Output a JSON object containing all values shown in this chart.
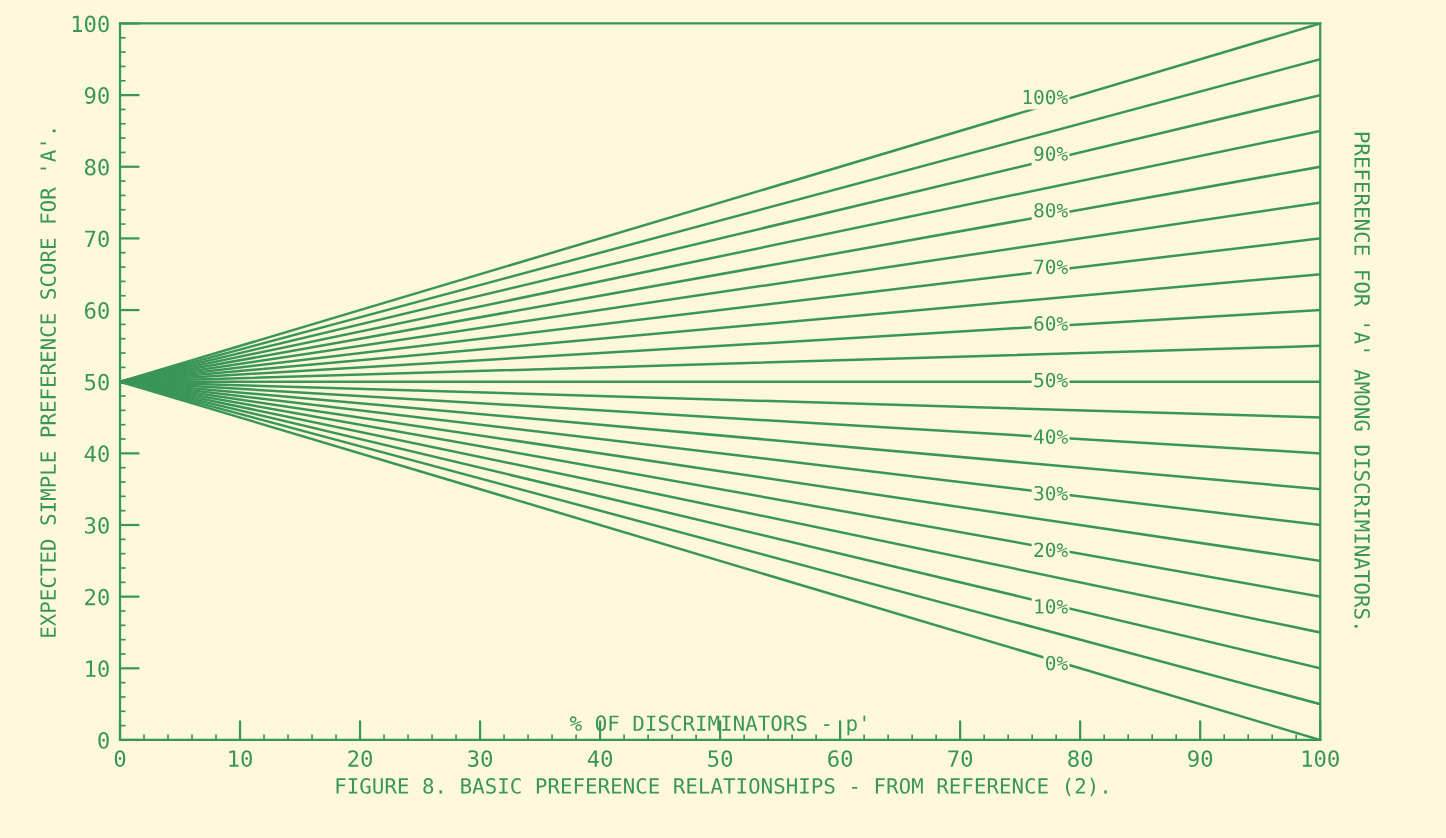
{
  "chart_data": {
    "type": "line",
    "ylabel": "EXPECTED SIMPLE PREFERENCE SCORE FOR 'A'.",
    "xlabel": "% OF DISCRIMINATORS - p'",
    "y2label": "PREFERENCE FOR 'A' AMONG DISCRIMINATORS.",
    "annotations": [
      "FIGURE 8. BASIC PREFERENCE RELATIONSHIPS - FROM REFERENCE (2)."
    ],
    "xlim": [
      0,
      100
    ],
    "xticks": [
      0,
      10,
      20,
      30,
      40,
      50,
      60,
      70,
      80,
      90,
      100
    ],
    "ylim": [
      0,
      100
    ],
    "yticks": [
      0,
      10,
      20,
      30,
      40,
      50,
      60,
      70,
      80,
      90,
      100
    ],
    "grid": false,
    "legend": false,
    "marker": "none",
    "line_style": "solid",
    "x": [
      0,
      100
    ],
    "series": [
      {
        "name": "100%",
        "color": "#3a9658",
        "values": [
          50,
          100
        ]
      },
      {
        "color": "#3a9658",
        "values": [
          50,
          95
        ]
      },
      {
        "name": "90%",
        "color": "#3a9658",
        "values": [
          50,
          90
        ]
      },
      {
        "color": "#3a9658",
        "values": [
          50,
          85
        ]
      },
      {
        "name": "80%",
        "color": "#3a9658",
        "values": [
          50,
          80
        ]
      },
      {
        "color": "#3a9658",
        "values": [
          50,
          75
        ]
      },
      {
        "name": "70%",
        "color": "#3a9658",
        "values": [
          50,
          70
        ]
      },
      {
        "color": "#3a9658",
        "values": [
          50,
          65
        ]
      },
      {
        "name": "60%",
        "color": "#3a9658",
        "values": [
          50,
          60
        ]
      },
      {
        "color": "#3a9658",
        "values": [
          50,
          55
        ]
      },
      {
        "name": "50%",
        "color": "#3a9658",
        "values": [
          50,
          50
        ]
      },
      {
        "color": "#3a9658",
        "values": [
          50,
          45
        ]
      },
      {
        "name": "40%",
        "color": "#3a9658",
        "values": [
          50,
          40
        ]
      },
      {
        "color": "#3a9658",
        "values": [
          50,
          35
        ]
      },
      {
        "name": "30%",
        "color": "#3a9658",
        "values": [
          50,
          30
        ]
      },
      {
        "color": "#3a9658",
        "values": [
          50,
          25
        ]
      },
      {
        "name": "20%",
        "color": "#3a9658",
        "values": [
          50,
          20
        ]
      },
      {
        "color": "#3a9658",
        "values": [
          50,
          15
        ]
      },
      {
        "name": "10%",
        "color": "#3a9658",
        "values": [
          50,
          10
        ]
      },
      {
        "color": "#3a9658",
        "values": [
          50,
          5
        ]
      },
      {
        "name": "0%",
        "color": "#3a9658",
        "values": [
          50,
          0
        ]
      }
    ]
  }
}
